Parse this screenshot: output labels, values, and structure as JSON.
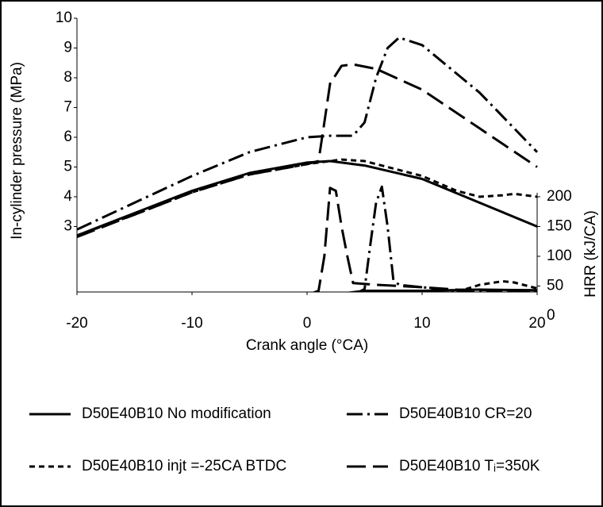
{
  "chart_data": {
    "type": "line",
    "ylabel": "In-cylinder pressure (MPa)",
    "y2label": "HRR (kJ/CA)",
    "xlabel": "Crank angle (°CA)",
    "xlim": [
      -20,
      20
    ],
    "xticks": [
      -20,
      -10,
      0,
      10,
      20
    ],
    "ylim": [
      0,
      10
    ],
    "yticks": [
      3,
      4,
      5,
      6,
      7,
      8,
      9,
      10
    ],
    "y2lim": [
      0,
      500
    ],
    "y2ticks": [
      0,
      50,
      100,
      150,
      200
    ],
    "xaxis_at": 0.8,
    "series": [
      {
        "name": "D50E40B10 No modification",
        "color": "#000000",
        "dash": "none",
        "x": [
          -20,
          -15,
          -10,
          -5,
          0,
          2,
          5,
          10,
          15,
          20
        ],
        "values": [
          2.7,
          3.45,
          4.2,
          4.8,
          5.15,
          5.2,
          5.05,
          4.6,
          3.8,
          3.0
        ]
      },
      {
        "name": "D50E40B10 CR=20",
        "color": "#000000",
        "dash": "20 6 3 6",
        "x": [
          -20,
          -15,
          -10,
          -5,
          0,
          2,
          4,
          5,
          6,
          7,
          8,
          10,
          15,
          20
        ],
        "values": [
          2.9,
          3.8,
          4.7,
          5.5,
          6.0,
          6.05,
          6.05,
          6.5,
          8.0,
          9.0,
          9.35,
          9.1,
          7.5,
          5.5
        ]
      },
      {
        "name": "D50E40B10 injt =-25CA BTDC",
        "color": "#000000",
        "dash": "7 5",
        "x": [
          -20,
          -15,
          -10,
          -5,
          0,
          3,
          5,
          10,
          13,
          15,
          17,
          18,
          20
        ],
        "values": [
          2.7,
          3.4,
          4.15,
          4.75,
          5.1,
          5.25,
          5.2,
          4.7,
          4.2,
          4.0,
          4.05,
          4.1,
          4.0
        ]
      },
      {
        "name": "D50E40B10 Tᵢ=350K",
        "color": "#000000",
        "dash": "24 9",
        "x": [
          -20,
          -10,
          -5,
          0,
          1,
          1.5,
          2,
          3,
          4,
          6,
          10,
          15,
          20
        ],
        "values": [
          2.65,
          4.15,
          4.75,
          5.1,
          5.2,
          6.5,
          7.8,
          8.4,
          8.45,
          8.3,
          7.6,
          6.3,
          5.0
        ]
      },
      {
        "name": "D50E40B10 No modification",
        "color": "#000000",
        "dash": "none",
        "axis": "y2",
        "x": [
          -20,
          0,
          5,
          10,
          15,
          20
        ],
        "values": [
          0,
          30,
          42,
          42,
          44,
          43
        ]
      },
      {
        "name": "D50E40B10 CR=20",
        "color": "#000000",
        "dash": "20 6 3 6",
        "axis": "y2",
        "x": [
          -20,
          4,
          5,
          5.5,
          6,
          6.5,
          7,
          7.5,
          8,
          10,
          13,
          20
        ],
        "values": [
          0,
          35,
          45,
          120,
          190,
          217,
          150,
          60,
          52,
          48,
          42,
          40
        ]
      },
      {
        "name": "D50E40B10 injt =-25CA BTDC",
        "color": "#000000",
        "dash": "7 5",
        "axis": "y2",
        "x": [
          -20,
          12,
          13,
          15,
          17,
          18,
          20
        ],
        "values": [
          0,
          35,
          40,
          52,
          58,
          56,
          46
        ]
      },
      {
        "name": "D50E40B10 Tᵢ=350K",
        "color": "#000000",
        "dash": "24 9",
        "axis": "y2",
        "x": [
          -20,
          0,
          1,
          1.5,
          2,
          2.5,
          3,
          3.5,
          4,
          6,
          10,
          13,
          20
        ],
        "values": [
          0,
          35,
          42,
          100,
          215,
          210,
          150,
          100,
          55,
          52,
          48,
          44,
          42
        ]
      }
    ]
  }
}
